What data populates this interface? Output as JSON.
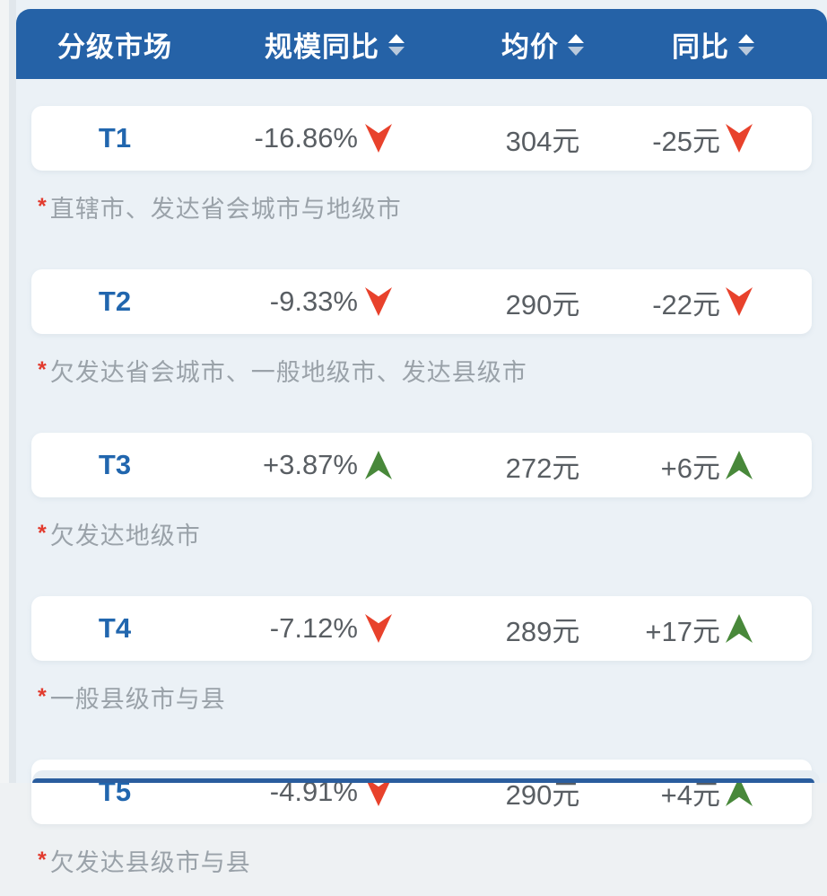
{
  "header": {
    "columns": [
      {
        "label": "分级市场",
        "sortable": false
      },
      {
        "label": "规模同比",
        "sortable": true
      },
      {
        "label": "均价",
        "sortable": true
      },
      {
        "label": "同比",
        "sortable": true
      }
    ]
  },
  "note_marker": "*",
  "rows": [
    {
      "tier": "T1",
      "scale_yoy": "-16.86%",
      "scale_dir": "down",
      "avg_price": "304元",
      "price_yoy": "-25元",
      "price_dir": "down",
      "note": "直辖市、发达省会城市与地级市"
    },
    {
      "tier": "T2",
      "scale_yoy": "-9.33%",
      "scale_dir": "down",
      "avg_price": "290元",
      "price_yoy": "-22元",
      "price_dir": "down",
      "note": "欠发达省会城市、一般地级市、发达县级市"
    },
    {
      "tier": "T3",
      "scale_yoy": "+3.87%",
      "scale_dir": "up",
      "avg_price": "272元",
      "price_yoy": "+6元",
      "price_dir": "up",
      "note": "欠发达地级市"
    },
    {
      "tier": "T4",
      "scale_yoy": "-7.12%",
      "scale_dir": "down",
      "avg_price": "289元",
      "price_yoy": "+17元",
      "price_dir": "up",
      "note": "一般县级市与县"
    },
    {
      "tier": "T5",
      "scale_yoy": "-4.91%",
      "scale_dir": "down",
      "avg_price": "290元",
      "price_yoy": "+4元",
      "price_dir": "up",
      "note": "欠发达县级市与县"
    }
  ],
  "colors": {
    "header_bg": "#2562A7",
    "panel_bg": "#EBF1F6",
    "tier_text": "#2166AE",
    "value_text": "#595E63",
    "note_text": "#9AA2A9",
    "asterisk": "#E23B2E",
    "trend_up": "#48883A",
    "trend_down": "#E8422C",
    "sort_up": "#FFFFFF",
    "sort_down": "#B9C9DC"
  }
}
